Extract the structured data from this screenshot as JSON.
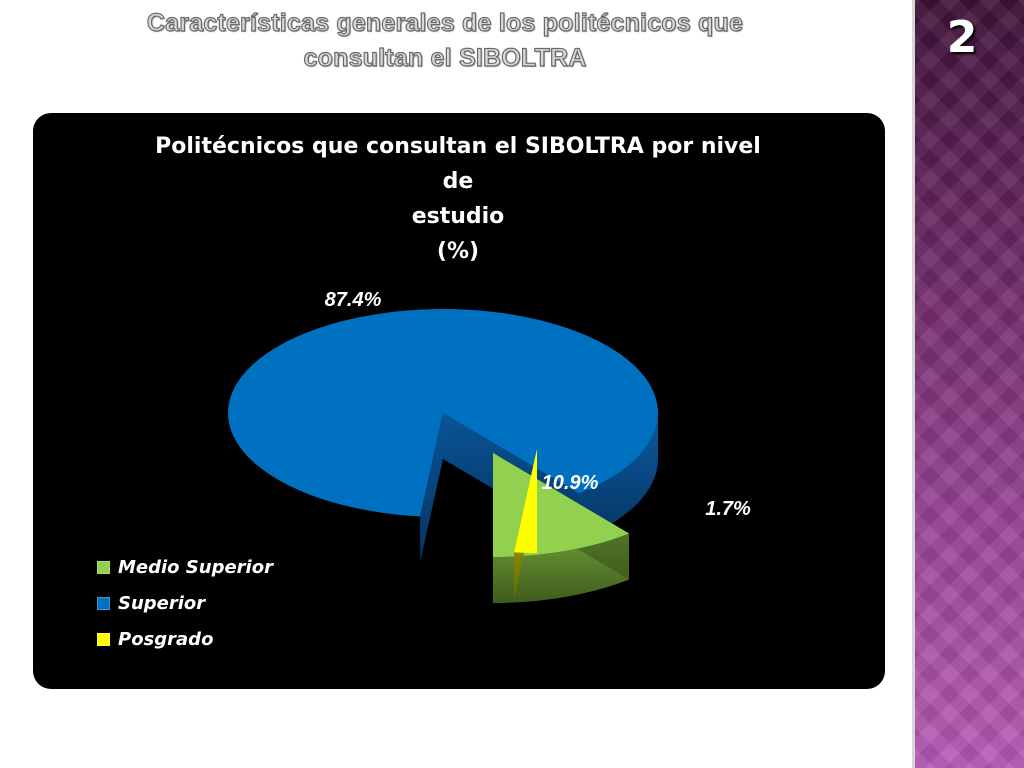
{
  "slide": {
    "title_line1": "Características generales de los politécnicos que",
    "title_line2": "consultan el  SIBOLTRA",
    "number": "2"
  },
  "colors": {
    "background": "#ffffff",
    "sidebar": "#9a4598",
    "panel": "#000000",
    "medio_superior": "#92d050",
    "superior": "#0070c0",
    "posgrado": "#ffff00"
  },
  "chart_data": {
    "type": "pie",
    "style": "3d-exploded",
    "title": "Politécnicos que consultan el SIBOLTRA por nivel de estudio (%)",
    "title_lines": [
      "Politécnicos que consultan el SIBOLTRA por nivel de",
      "estudio",
      "(%)"
    ],
    "categories": [
      "Medio Superior",
      "Superior",
      "Posgrado"
    ],
    "values": [
      10.9,
      87.4,
      1.7
    ],
    "labels": [
      "10.9%",
      "87.4%",
      "1.7%"
    ],
    "colors": [
      "#92d050",
      "#0070c0",
      "#ffff00"
    ],
    "legend_position": "bottom-left"
  }
}
